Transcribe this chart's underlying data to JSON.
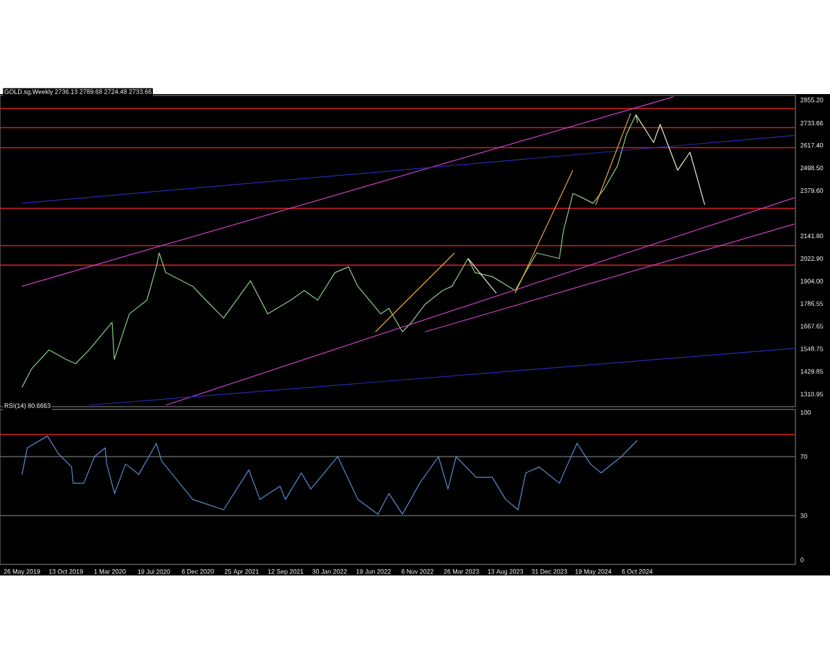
{
  "chart_data": [
    {
      "type": "line",
      "title": "GOLD.sg,Weekly  2736.13 2789.68 2724.48 2733.66",
      "xlim": [
        "2019-03-17",
        "2026-02-22"
      ],
      "ylim": [
        1245,
        2879
      ],
      "tick_labels": "y",
      "yticks": [
        {
          "value": 2855.2,
          "label": "2855.20"
        },
        {
          "value": 2733.66,
          "label": "2733.66"
        },
        {
          "value": 2617.4,
          "label": "2617.40"
        },
        {
          "value": 2498.5,
          "label": "2498.50"
        },
        {
          "value": 2379.6,
          "label": "2379.60"
        },
        {
          "value": 2141.8,
          "label": "2141.80"
        },
        {
          "value": 2022.9,
          "label": "2022.90"
        },
        {
          "value": 1904.0,
          "label": "1904.00"
        },
        {
          "value": 1786.55,
          "label": "1786.55"
        },
        {
          "value": 1667.65,
          "label": "1667.65"
        },
        {
          "value": 1548.75,
          "label": "1548.75"
        },
        {
          "value": 1429.85,
          "label": "1429.85"
        },
        {
          "value": 1310.95,
          "label": "1310.95"
        }
      ],
      "series": [
        {
          "color": "#8fd18a",
          "x": [
            "2019-05-26",
            "2019-06-25",
            "2019-08-20",
            "2019-10-14",
            "2019-11-13",
            "2019-12-26",
            "2020-03-08",
            "2020-03-15",
            "2020-05-02",
            "2020-06-27",
            "2020-07-27",
            "2020-08-05",
            "2020-08-26",
            "2020-11-20",
            "2020-12-15",
            "2021-02-26",
            "2021-05-23",
            "2021-07-17",
            "2021-09-28",
            "2021-11-10",
            "2021-12-23",
            "2022-02-16",
            "2022-03-31",
            "2022-04-30",
            "2022-07-12",
            "2022-08-07",
            "2022-09-19",
            "2022-10-18",
            "2022-11-30",
            "2023-01-25",
            "2023-02-24",
            "2023-04-16",
            "2023-05-08",
            "2023-07-02",
            "2023-09-13",
            "2023-10-26",
            "2023-11-21",
            "2024-02-01",
            "2024-02-14",
            "2024-03-15",
            "2024-04-14",
            "2024-05-18",
            "2024-06-22",
            "2024-08-04",
            "2024-09-02",
            "2024-10-02",
            "2024-10-07"
          ],
          "values": [
            1347,
            1442,
            1543,
            1493,
            1471,
            1543,
            1688,
            1493,
            1732,
            1804,
            1979,
            2052,
            1949,
            1877,
            1833,
            1710,
            1906,
            1732,
            1804,
            1855,
            1804,
            1949,
            1979,
            1877,
            1732,
            1761,
            1638,
            1688,
            1782,
            1855,
            1877,
            2023,
            1949,
            1928,
            1855,
            1979,
            2052,
            2023,
            2168,
            2364,
            2342,
            2313,
            2386,
            2509,
            2676,
            2778,
            2734
          ]
        },
        {
          "color": "#d040d0",
          "x": [
            "2019-05-26",
            "2025-01-30"
          ],
          "values": [
            1877,
            2872
          ]
        },
        {
          "color": "#d040d0",
          "x": [
            "2020-08-26",
            "2026-02-19"
          ],
          "values": [
            1253,
            2342
          ]
        },
        {
          "color": "#d040d0",
          "x": [
            "2022-11-30",
            "2026-02-19"
          ],
          "values": [
            1638,
            2204
          ]
        },
        {
          "color": "#2a2ab0",
          "x": [
            "2019-05-26",
            "2026-02-19"
          ],
          "values": [
            2313,
            2669
          ]
        },
        {
          "color": "#2a2ab0",
          "x": [
            "2019-12-26",
            "2026-02-19"
          ],
          "values": [
            1253,
            1551
          ]
        },
        {
          "color": "#f0a848",
          "x": [
            "2022-06-25",
            "2023-03-04"
          ],
          "values": [
            1638,
            2052
          ]
        },
        {
          "color": "#f0a848",
          "x": [
            "2023-09-13",
            "2024-03-15"
          ],
          "values": [
            1841,
            2487
          ]
        },
        {
          "color": "#f0a848",
          "x": [
            "2024-05-27",
            "2024-09-15"
          ],
          "values": [
            2306,
            2785
          ]
        },
        {
          "color": "#f5f0d0",
          "x": [
            "2023-04-16",
            "2023-07-15"
          ],
          "values": [
            2023,
            1841
          ]
        },
        {
          "color": "#f5f0d0",
          "x": [
            "2024-10-02",
            "2024-11-27",
            "2024-12-18",
            "2025-02-12",
            "2025-03-23",
            "2025-05-09"
          ],
          "values": [
            2777,
            2632,
            2727,
            2486,
            2581,
            2305
          ]
        }
      ],
      "ref_lines": [
        {
          "axis": "y",
          "value": 2811,
          "color": "#d02020"
        },
        {
          "axis": "y",
          "value": 2710,
          "color": "#d02020"
        },
        {
          "axis": "y",
          "value": 2605,
          "color": "#d02020"
        },
        {
          "axis": "y",
          "value": 2286,
          "color": "#d02020"
        },
        {
          "axis": "y",
          "value": 2090,
          "color": "#d02020"
        },
        {
          "axis": "y",
          "value": 1988,
          "color": "#d02020"
        }
      ]
    },
    {
      "type": "line",
      "title": "RSI(14) 80.6663",
      "xlim": [
        "2019-03-17",
        "2026-02-22"
      ],
      "ylim": [
        -3,
        102
      ],
      "yticks": [
        100,
        70,
        30,
        0
      ],
      "xticks": [
        {
          "value": "2019-05-26",
          "label": "26 May 2019"
        },
        {
          "value": "2019-10-13",
          "label": "13 Oct 2019"
        },
        {
          "value": "2020-03-01",
          "label": "1 Mar 2020"
        },
        {
          "value": "2020-07-19",
          "label": "19 Jul 2020"
        },
        {
          "value": "2020-12-06",
          "label": "6 Dec 2020"
        },
        {
          "value": "2021-04-25",
          "label": "25 Apr 2021"
        },
        {
          "value": "2021-09-12",
          "label": "12 Sep 2021"
        },
        {
          "value": "2022-01-30",
          "label": "30 Jan 2022"
        },
        {
          "value": "2022-06-19",
          "label": "19 Jun 2022"
        },
        {
          "value": "2022-11-06",
          "label": "6 Nov 2022"
        },
        {
          "value": "2023-03-26",
          "label": "26 Mar 2023"
        },
        {
          "value": "2023-08-13",
          "label": "13 Aug 2023"
        },
        {
          "value": "2023-12-31",
          "label": "31 Dec 2023"
        },
        {
          "value": "2024-05-19",
          "label": "19 May 2024"
        },
        {
          "value": "2024-10-06",
          "label": "6 Oct 2024"
        }
      ],
      "series": [
        {
          "color": "#5b8fd6",
          "x": [
            "2019-05-26",
            "2019-06-12",
            "2019-08-15",
            "2019-09-19",
            "2019-10-31",
            "2019-11-05",
            "2019-12-09",
            "2020-01-12",
            "2020-02-15",
            "2020-02-20",
            "2020-03-16",
            "2020-04-20",
            "2020-06-01",
            "2020-07-27",
            "2020-08-13",
            "2020-11-20",
            "2021-02-26",
            "2021-05-18",
            "2021-06-22",
            "2021-08-25",
            "2021-09-11",
            "2021-11-01",
            "2021-12-01",
            "2022-02-25",
            "2022-04-30",
            "2022-07-03",
            "2022-08-07",
            "2022-09-19",
            "2022-11-13",
            "2023-01-12",
            "2023-02-11",
            "2023-03-09",
            "2023-05-12",
            "2023-07-02",
            "2023-08-14",
            "2023-09-22",
            "2023-10-17",
            "2023-11-29",
            "2024-02-01",
            "2024-03-28",
            "2024-05-10",
            "2024-06-13",
            "2024-08-16",
            "2024-10-06"
          ],
          "values": [
            58,
            76,
            84,
            72,
            63,
            52,
            52,
            70,
            76,
            65,
            45,
            65,
            58,
            79,
            67,
            41,
            34,
            61,
            41,
            50,
            41,
            59,
            48,
            70,
            41,
            31,
            45,
            31,
            52,
            70,
            48,
            70,
            56,
            56,
            41,
            34,
            59,
            63,
            52,
            79,
            65,
            59,
            70,
            81
          ]
        }
      ],
      "ref_lines": [
        {
          "axis": "y",
          "value": 85,
          "color": "#d02020"
        },
        {
          "axis": "y",
          "value": 70,
          "color": "#606060"
        },
        {
          "axis": "y",
          "value": 30,
          "color": "#606060"
        }
      ]
    }
  ]
}
